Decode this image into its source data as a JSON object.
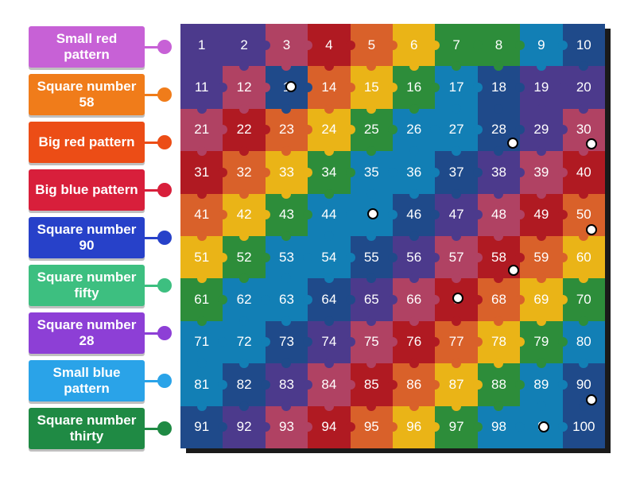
{
  "labels": [
    {
      "text": "Small red pattern",
      "color": "#c761d6"
    },
    {
      "text": "Square number 58",
      "color": "#f07c1a"
    },
    {
      "text": "Big red pattern",
      "color": "#ec4d16"
    },
    {
      "text": "Big blue pattern",
      "color": "#d81f3b"
    },
    {
      "text": "Square number 90",
      "color": "#2741c9"
    },
    {
      "text": "Square number fifty",
      "color": "#3dbf80"
    },
    {
      "text": "Square number 28",
      "color": "#8d3fd6"
    },
    {
      "text": "Small blue pattern",
      "color": "#2aa3e8"
    },
    {
      "text": "Square number thirty",
      "color": "#1f8a44"
    }
  ],
  "palette": [
    "#4c3a8c",
    "#b04263",
    "#b01a22",
    "#d9612a",
    "#eab417",
    "#2d8d3a",
    "#127fb5",
    "#1f4a8a"
  ],
  "grid": [
    [
      0,
      0,
      1,
      2,
      3,
      4,
      5,
      5,
      6,
      7
    ],
    [
      0,
      1,
      7,
      3,
      4,
      5,
      6,
      7,
      0,
      0
    ],
    [
      1,
      2,
      3,
      4,
      5,
      6,
      6,
      7,
      0,
      1
    ],
    [
      2,
      3,
      4,
      5,
      6,
      6,
      7,
      0,
      1,
      2
    ],
    [
      3,
      4,
      5,
      6,
      6,
      7,
      0,
      1,
      2,
      3
    ],
    [
      4,
      5,
      6,
      6,
      7,
      0,
      1,
      2,
      3,
      4
    ],
    [
      5,
      6,
      6,
      7,
      0,
      1,
      2,
      3,
      4,
      5
    ],
    [
      6,
      6,
      7,
      0,
      1,
      2,
      3,
      4,
      5,
      6
    ],
    [
      6,
      7,
      0,
      1,
      2,
      3,
      4,
      5,
      6,
      7
    ],
    [
      7,
      0,
      1,
      2,
      3,
      4,
      5,
      6,
      6,
      7
    ]
  ],
  "numbers": [
    "1",
    "2",
    "3",
    "4",
    "5",
    "6",
    "7",
    "8",
    "9",
    "10",
    "11",
    "12",
    "1",
    "14",
    "15",
    "16",
    "17",
    "18",
    "19",
    "20",
    "21",
    "22",
    "23",
    "24",
    "25",
    "26",
    "27",
    "28",
    "29",
    "30",
    "31",
    "32",
    "33",
    "34",
    "35",
    "36",
    "37",
    "38",
    "39",
    "40",
    "41",
    "42",
    "43",
    "44",
    "4",
    "46",
    "47",
    "48",
    "49",
    "50",
    "51",
    "52",
    "53",
    "54",
    "55",
    "56",
    "57",
    "58",
    "59",
    "60",
    "61",
    "62",
    "63",
    "64",
    "65",
    "66",
    "6",
    "68",
    "69",
    "70",
    "71",
    "72",
    "73",
    "74",
    "75",
    "76",
    "77",
    "78",
    "79",
    "80",
    "81",
    "82",
    "83",
    "84",
    "85",
    "86",
    "87",
    "88",
    "89",
    "90",
    "91",
    "92",
    "93",
    "94",
    "95",
    "96",
    "97",
    "98",
    "9",
    "100"
  ]
}
